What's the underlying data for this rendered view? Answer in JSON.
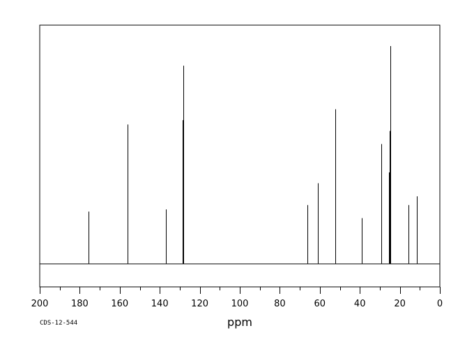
{
  "chart_data": {
    "type": "line",
    "title": "",
    "xlabel": "ppm",
    "ylabel": "",
    "xlim": [
      200,
      0
    ],
    "x_reversed": true,
    "ticks": [
      "200",
      "180",
      "160",
      "140",
      "120",
      "100",
      "80",
      "60",
      "40",
      "20",
      "0"
    ],
    "tick_values": [
      200,
      180,
      160,
      140,
      120,
      100,
      80,
      60,
      40,
      20,
      0
    ],
    "minor_tick_step": 10,
    "grid": false,
    "peaks": [
      {
        "ppm": 175.6,
        "intensity": 0.24
      },
      {
        "ppm": 156.0,
        "intensity": 0.64
      },
      {
        "ppm": 136.8,
        "intensity": 0.25
      },
      {
        "ppm": 128.6,
        "intensity": 0.66
      },
      {
        "ppm": 128.3,
        "intensity": 0.91
      },
      {
        "ppm": 66.3,
        "intensity": 0.27
      },
      {
        "ppm": 61.0,
        "intensity": 0.37
      },
      {
        "ppm": 52.4,
        "intensity": 0.71
      },
      {
        "ppm": 39.1,
        "intensity": 0.21
      },
      {
        "ppm": 29.4,
        "intensity": 0.38
      },
      {
        "ppm": 29.1,
        "intensity": 0.55
      },
      {
        "ppm": 25.5,
        "intensity": 0.42
      },
      {
        "ppm": 25.1,
        "intensity": 0.61
      },
      {
        "ppm": 24.8,
        "intensity": 1.0
      },
      {
        "ppm": 15.8,
        "intensity": 0.27
      },
      {
        "ppm": 11.6,
        "intensity": 0.31
      }
    ]
  },
  "footer": {
    "code": "CDS-12-544"
  }
}
